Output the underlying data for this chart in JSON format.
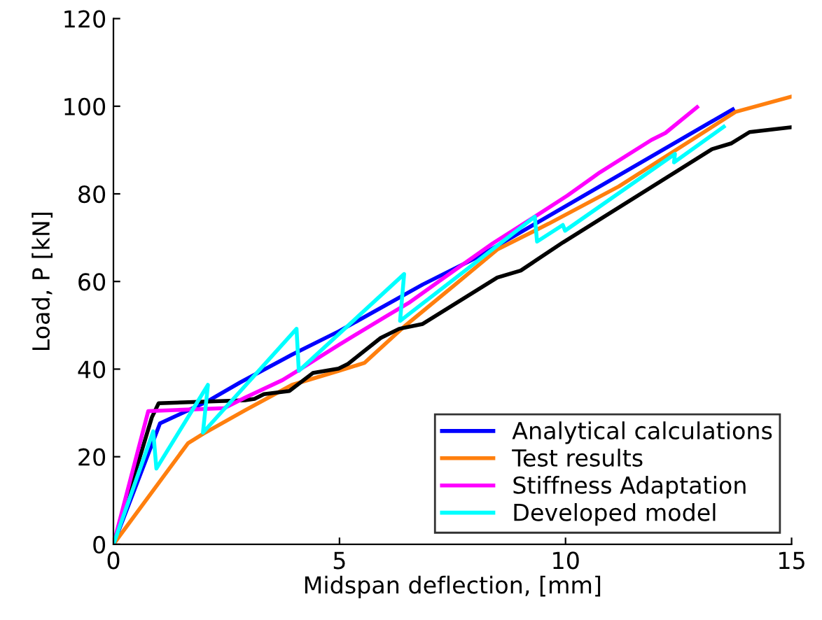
{
  "chart_data": {
    "type": "line",
    "xlabel": "Midspan deflection, [mm]",
    "ylabel": "Load, P [kN]",
    "xlim": [
      0,
      15
    ],
    "ylim": [
      0,
      120
    ],
    "xticks": [
      0,
      5,
      10,
      15
    ],
    "yticks": [
      0,
      20,
      40,
      60,
      80,
      100,
      120
    ],
    "grid": false,
    "legend": "bottom right",
    "line_style": "solid",
    "marker": "none",
    "series": [
      {
        "name": "Analytical calculations",
        "color": "#0000ff",
        "x": [
          0,
          1.03,
          2.09,
          2.81,
          3.95,
          4.98,
          6.84,
          8.08,
          13.7
        ],
        "values": [
          0,
          27.6,
          32.7,
          37,
          43.3,
          48.6,
          59.3,
          65.7,
          99.3
        ]
      },
      {
        "name": "Test results",
        "color": "#ff7f0e",
        "x": [
          0,
          1.65,
          1.98,
          2.91,
          3.95,
          4.98,
          5.55,
          6.43,
          7.56,
          8.49,
          9.63,
          11.18,
          13.76,
          15
        ],
        "values": [
          0,
          23.1,
          25.2,
          30.6,
          36.4,
          39.6,
          41.4,
          49.7,
          59.3,
          67.3,
          73.2,
          81.7,
          98.7,
          102.2
        ]
      },
      {
        "color": "#000000",
        "x": [
          0,
          0.85,
          1.0,
          2.91,
          3.12,
          3.33,
          3.89,
          4.41,
          4.98,
          5.19,
          5.91,
          6.32,
          6.84,
          8.49,
          9.01,
          9.94,
          12.42,
          13.24,
          13.66,
          14.07,
          15
        ],
        "values": [
          0,
          29,
          32.2,
          32.9,
          33.2,
          34.3,
          35,
          39.1,
          40.1,
          41.2,
          47.1,
          49.2,
          50.3,
          60.9,
          62.5,
          68.9,
          84.9,
          90.2,
          91.5,
          94.1,
          95.2
        ]
      },
      {
        "name": "Stiffness Adaptation",
        "color": "#ff00ff",
        "x": [
          0,
          0.77,
          2.45,
          2.91,
          3.74,
          4.15,
          4.98,
          6.01,
          6.53,
          7.25,
          8.39,
          9.32,
          10.04,
          10.76,
          11.9,
          12.21,
          12.91
        ],
        "values": [
          0,
          30.4,
          31.1,
          33.5,
          37.5,
          40.1,
          45.5,
          51.9,
          55.1,
          60.4,
          68.7,
          74.8,
          79.6,
          84.9,
          92.3,
          93.9,
          99.8
        ]
      },
      {
        "name": "Developed model",
        "color": "#00ffff",
        "x": [
          0,
          0.88,
          0.95,
          2.09,
          1.98,
          4.05,
          4.1,
          6.43,
          6.34,
          9.32,
          9.37,
          9.94,
          9.99,
          12.42,
          12.4,
          13.5
        ],
        "values": [
          0,
          25.8,
          17.3,
          36.4,
          25.5,
          49.2,
          39.6,
          61.7,
          51,
          74.8,
          69.1,
          72.9,
          71.6,
          89.1,
          87.2,
          95.3
        ]
      }
    ]
  }
}
